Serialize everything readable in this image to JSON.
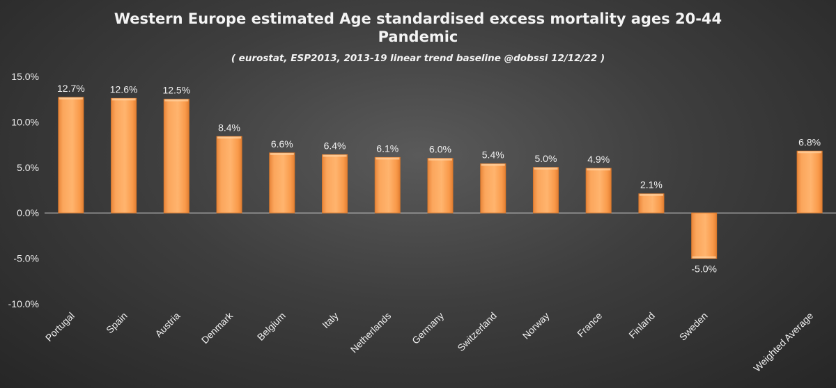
{
  "chart_data": {
    "type": "bar",
    "title": "Western Europe estimated Age standardised excess mortality ages 20-44 Pandemic",
    "subtitle": "( eurostat, ESP2013, 2013-19 linear trend baseline @dobssi 12/12/22 )",
    "xlabel": "",
    "ylabel": "",
    "ylim": [
      -10,
      15
    ],
    "yticks": [
      "15.0%",
      "10.0%",
      "5.0%",
      "0.0%",
      "-5.0%",
      "-10.0%"
    ],
    "ytick_values": [
      15,
      10,
      5,
      0,
      -5,
      -10
    ],
    "categories": [
      "Portugal",
      "Spain",
      "Austria",
      "Denmark",
      "Belgium",
      "Italy",
      "Netherlands",
      "Germany",
      "Switzerland",
      "Norway",
      "France",
      "Finland",
      "Sweden",
      "",
      "Weighted Average"
    ],
    "values": [
      12.7,
      12.6,
      12.5,
      8.4,
      6.6,
      6.4,
      6.1,
      6.0,
      5.4,
      5.0,
      4.9,
      2.1,
      -5.0,
      null,
      6.8
    ],
    "data_labels": [
      "12.7%",
      "12.6%",
      "12.5%",
      "8.4%",
      "6.6%",
      "6.4%",
      "6.1%",
      "6.0%",
      "5.4%",
      "5.0%",
      "4.9%",
      "2.1%",
      "-5.0%",
      "",
      "6.8%"
    ],
    "grid": false,
    "legend": "none",
    "colors": {
      "bar": "#f9a053",
      "bar_edge": "#d9782c",
      "text": "#f0f0f0",
      "axis": "#d8d8d8"
    }
  }
}
